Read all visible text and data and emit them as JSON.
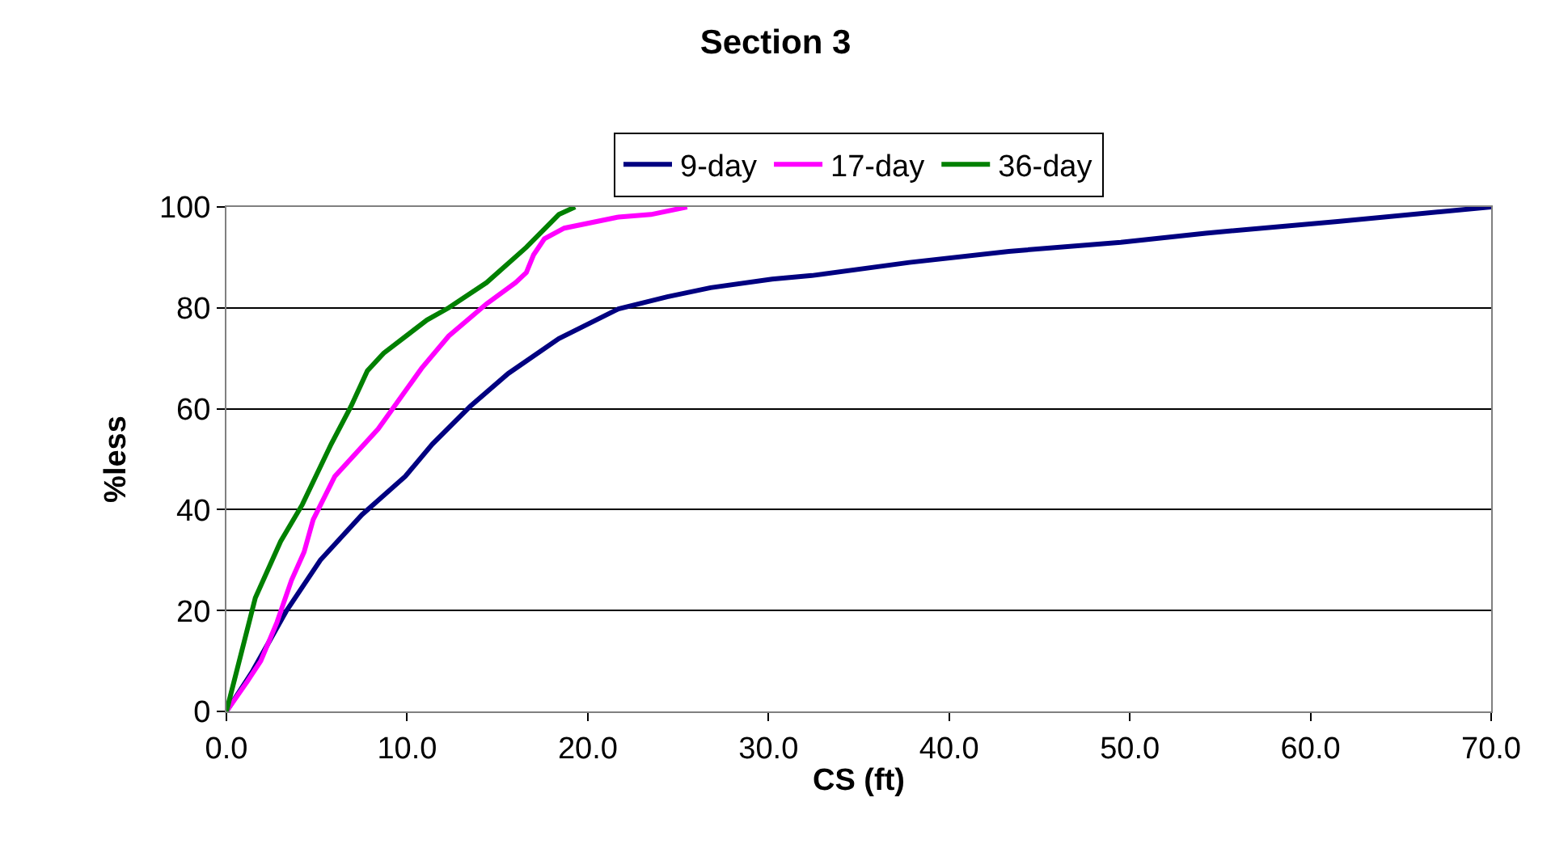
{
  "chart_data": {
    "type": "line",
    "title": "Section 3",
    "xlabel": "CS (ft)",
    "ylabel": "%less",
    "xlim": [
      0,
      70
    ],
    "xticks": [
      {
        "value": 0,
        "label": "0.0"
      },
      {
        "value": 10,
        "label": "10.0"
      },
      {
        "value": 20,
        "label": "20.0"
      },
      {
        "value": 30,
        "label": "30.0"
      },
      {
        "value": 40,
        "label": "40.0"
      },
      {
        "value": 50,
        "label": "50.0"
      },
      {
        "value": 60,
        "label": "60.0"
      },
      {
        "value": 70,
        "label": "70.0"
      }
    ],
    "ylim": [
      0,
      100
    ],
    "yticks": [
      0,
      20,
      40,
      60,
      80,
      100
    ],
    "grid": "y",
    "legend": "top",
    "marker": "none",
    "line_style": "solid",
    "series": [
      {
        "name": "9-day",
        "color": "#000080",
        "x": [
          0,
          1.45,
          3.3,
          5.2,
          7.5,
          9.9,
          11.4,
          13.5,
          15.6,
          18.4,
          21.7,
          24.4,
          26.8,
          30.2,
          32.4,
          37.8,
          43.3,
          49.5,
          54.2,
          61.5,
          70
        ],
        "values": [
          0,
          8,
          19.8,
          30,
          39,
          46.6,
          53,
          60.5,
          67,
          73.9,
          79.8,
          82.2,
          84,
          85.7,
          86.4,
          89,
          91.2,
          93,
          94.8,
          97.1,
          100
        ]
      },
      {
        "name": "17-day",
        "color": "#ff00ff",
        "x": [
          0,
          1.15,
          1.9,
          2.8,
          3.6,
          4.3,
          4.8,
          6.0,
          8.4,
          10.8,
          12.3,
          14.4,
          16,
          16.6,
          17,
          17.6,
          18.7,
          21.7,
          23.5,
          25.5
        ],
        "values": [
          0,
          5.9,
          10,
          17.7,
          26,
          31.6,
          38,
          46.6,
          56,
          68,
          74.4,
          80.8,
          85,
          87,
          90.5,
          93.7,
          95.8,
          98,
          98.5,
          100
        ]
      },
      {
        "name": "36-day",
        "color": "#008000",
        "x": [
          0,
          1.6,
          3.0,
          4.2,
          5.8,
          6.9,
          7.8,
          8.7,
          11.1,
          12.3,
          14.4,
          16.6,
          18.4,
          19.3
        ],
        "values": [
          0,
          22.5,
          33.7,
          41,
          53,
          60.5,
          67.5,
          71,
          77.6,
          80,
          85,
          92,
          98.5,
          100
        ]
      }
    ]
  }
}
